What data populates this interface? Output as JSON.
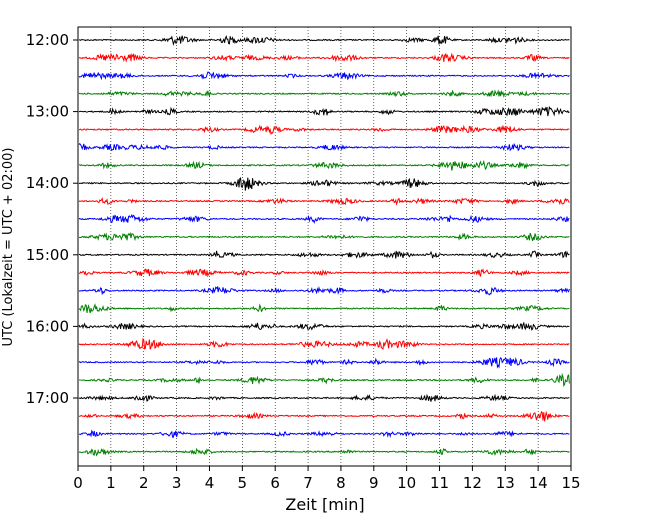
{
  "chart_data": {
    "type": "line",
    "subtype": "helicorder",
    "xlabel": "Zeit  [min]",
    "ylabel": "UTC (Lokalzeit = UTC + 02:00)",
    "xlim": [
      0,
      15
    ],
    "x_ticks": [
      "0",
      "1",
      "2",
      "3",
      "4",
      "5",
      "6",
      "7",
      "8",
      "9",
      "10",
      "11",
      "12",
      "13",
      "14",
      "15"
    ],
    "y_ticks": [
      "12:00",
      "13:00",
      "14:00",
      "15:00",
      "16:00",
      "17:00"
    ],
    "rows": [
      "12:00",
      "12:15",
      "12:30",
      "12:45",
      "13:00",
      "13:15",
      "13:30",
      "13:45",
      "14:00",
      "14:15",
      "14:30",
      "14:45",
      "15:00",
      "15:15",
      "15:30",
      "15:45",
      "16:00",
      "16:15",
      "16:30",
      "16:45",
      "17:00",
      "17:15",
      "17:30",
      "17:45"
    ],
    "trace_colors": [
      "#000000",
      "#ff0000",
      "#0000ff",
      "#008000"
    ],
    "grid": "vertical dotted lines at each minute"
  }
}
